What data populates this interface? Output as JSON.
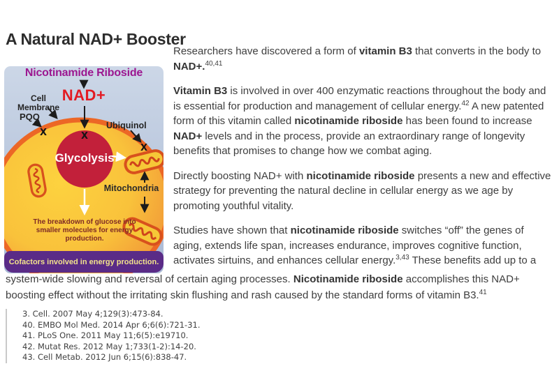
{
  "page": {
    "title": "A Natural NAD+ Booster"
  },
  "diagram": {
    "heading": "Nicotinamide Riboside",
    "nad_label": "NAD+",
    "cell_membrane_label": "Cell Membrane",
    "pqq_label": "PQQ",
    "ubiquinol_label": "Ubiquinol",
    "glycolysis_label": "Glycolysis",
    "mitochondria_label": "Mitochondria",
    "caption": "The breakdown of glucose into smaller molecules for energy production.",
    "banner": "Cofactors involved in energy production.",
    "colors": {
      "heading_magenta": "#9c1790",
      "nad_red": "#e31b23",
      "banner_purple": "#5a2b87",
      "banner_text": "#f2e38b",
      "cell_membrane_orange": "#ec6726",
      "cell_fill_yellow": "#fdd23f",
      "cell_fill_orange": "#f08f37",
      "glycolysis_red": "#c2203a",
      "background_blue": "#c5d1e3",
      "caption_maroon": "#7e2a25"
    }
  },
  "article": {
    "column_paragraphs": [
      {
        "parts": [
          {
            "t": "n",
            "text": "Researchers have discovered a form of "
          },
          {
            "t": "b",
            "text": "vitamin B3"
          },
          {
            "t": "n",
            "text": " that converts in the body to "
          },
          {
            "t": "b",
            "text": "NAD+."
          },
          {
            "t": "s",
            "text": "40,41"
          }
        ]
      },
      {
        "parts": [
          {
            "t": "b",
            "text": "Vitamin B3"
          },
          {
            "t": "n",
            "text": " is involved in over 400 enzymatic reactions throughout the body and is essential for production and management of cellular energy."
          },
          {
            "t": "s",
            "text": "42"
          },
          {
            "t": "n",
            "text": " A new patented form of this vitamin called "
          },
          {
            "t": "b",
            "text": "nicotinamide riboside"
          },
          {
            "t": "n",
            "text": " has been found to increase "
          },
          {
            "t": "b",
            "text": "NAD+"
          },
          {
            "t": "n",
            "text": " levels and in the process, provide an extraordinary range of longevity benefits that promises to change how we combat aging."
          }
        ]
      },
      {
        "parts": [
          {
            "t": "n",
            "text": "Directly boosting NAD+ with "
          },
          {
            "t": "b",
            "text": "nicotinamide riboside"
          },
          {
            "t": "n",
            "text": " presents a new and effective strategy for preventing the natural decline in cellular energy as we age by promoting youthful vitality."
          }
        ]
      },
      {
        "parts": [
          {
            "t": "n",
            "text": "Studies have shown that "
          },
          {
            "t": "b",
            "text": "nicotinamide riboside"
          },
          {
            "t": "n",
            "text": " switches “off” the genes of aging, extends life span, increases endurance, improves cognitive function, activates sirtuins, and enhances cellular energy."
          },
          {
            "t": "s",
            "text": "3,43"
          },
          {
            "t": "n",
            "text": " These benefits add up to a"
          }
        ]
      }
    ],
    "full_width_paragraph": {
      "parts": [
        {
          "t": "n",
          "text": "system-wide slowing and reversal of certain aging processes. "
        },
        {
          "t": "b",
          "text": "Nicotinamide riboside"
        },
        {
          "t": "n",
          "text": " accomplishes this NAD+ boosting effect without the irritating skin flushing and rash caused by the standard forms of vitamin B3."
        },
        {
          "t": "s",
          "text": "41"
        }
      ]
    }
  },
  "footnotes": [
    "3. Cell. 2007 May 4;129(3):473-84.",
    "40. EMBO Mol Med. 2014 Apr 6;6(6):721-31.",
    "41. PLoS One. 2011 May 11;6(5):e19710.",
    "42. Mutat Res. 2012 May 1;733(1-2):14-20.",
    "43. Cell Metab. 2012 Jun 6;15(6):838-47."
  ]
}
